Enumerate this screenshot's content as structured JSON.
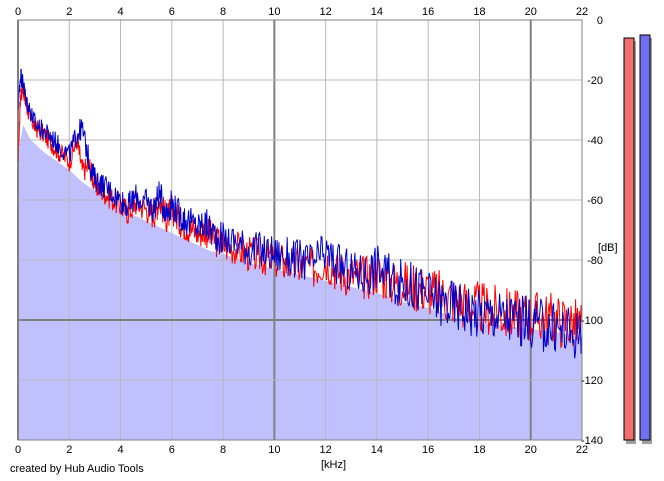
{
  "app": {
    "credit": "created by Hub Audio Tools"
  },
  "chart_data": {
    "type": "area",
    "xlabel": "[kHz]",
    "ylabel": "[dB]",
    "xlim": [
      0,
      22
    ],
    "ylim": [
      -140,
      0
    ],
    "x_ticks": [
      0,
      2,
      4,
      6,
      8,
      10,
      12,
      14,
      16,
      18,
      20,
      22
    ],
    "x_tick_labels": [
      "0",
      "2",
      "4",
      "6",
      "8",
      "10",
      "12",
      "14",
      "16",
      "18",
      "20",
      "22"
    ],
    "y_ticks": [
      0,
      -20,
      -40,
      -60,
      -80,
      -100,
      -120,
      -140
    ],
    "y_tick_labels": [
      "0",
      "-20",
      "-40",
      "-60",
      "-80",
      "-100",
      "-120",
      "-140"
    ],
    "grid": true,
    "series": [
      {
        "color": "#ff0000",
        "x": [
          0.0,
          0.1,
          0.2,
          0.3,
          0.5,
          0.7,
          1.0,
          1.3,
          1.6,
          2.0,
          2.3,
          2.5,
          2.8,
          3.0,
          3.3,
          3.6,
          4.0,
          4.3,
          4.6,
          5.0,
          5.3,
          5.5,
          5.8,
          6.0,
          6.3,
          6.6,
          7.0,
          7.3,
          7.6,
          8.0,
          8.5,
          9.0,
          9.5,
          10.0,
          10.5,
          11.0,
          11.5,
          12.0,
          12.5,
          13.0,
          13.5,
          14.0,
          14.5,
          15.0,
          15.5,
          16.0,
          16.5,
          17.0,
          17.5,
          18.0,
          18.5,
          19.0,
          19.5,
          20.0,
          20.5,
          21.0,
          21.5,
          22.0
        ],
        "values": [
          -48,
          -25,
          -22,
          -28,
          -33,
          -36,
          -38,
          -41,
          -44,
          -47,
          -40,
          -50,
          -49,
          -55,
          -57,
          -59,
          -62,
          -64,
          -61,
          -63,
          -65,
          -60,
          -66,
          -63,
          -67,
          -69,
          -71,
          -70,
          -73,
          -75,
          -76,
          -78,
          -79,
          -80,
          -81,
          -82,
          -83,
          -80,
          -84,
          -85,
          -86,
          -84,
          -87,
          -88,
          -89,
          -90,
          -92,
          -93,
          -95,
          -96,
          -97,
          -98,
          -98,
          -99,
          -99,
          -100,
          -101,
          -102
        ]
      },
      {
        "color": "#0000cc",
        "x": [
          0.0,
          0.1,
          0.2,
          0.3,
          0.5,
          0.7,
          1.0,
          1.3,
          1.6,
          2.0,
          2.3,
          2.5,
          2.8,
          3.0,
          3.3,
          3.6,
          4.0,
          4.3,
          4.6,
          5.0,
          5.3,
          5.5,
          5.8,
          6.0,
          6.3,
          6.6,
          7.0,
          7.3,
          7.6,
          8.0,
          8.5,
          9.0,
          9.5,
          10.0,
          10.5,
          11.0,
          11.5,
          12.0,
          12.5,
          13.0,
          13.5,
          14.0,
          14.5,
          15.0,
          15.5,
          16.0,
          16.5,
          17.0,
          17.5,
          18.0,
          18.5,
          19.0,
          19.5,
          20.0,
          20.5,
          21.0,
          21.5,
          22.0
        ],
        "values": [
          -30,
          -18,
          -21,
          -26,
          -31,
          -35,
          -37,
          -39,
          -42,
          -45,
          -38,
          -36,
          -48,
          -53,
          -55,
          -57,
          -60,
          -62,
          -59,
          -61,
          -63,
          -58,
          -64,
          -61,
          -65,
          -67,
          -69,
          -68,
          -71,
          -73,
          -74,
          -76,
          -77,
          -78,
          -79,
          -80,
          -81,
          -78,
          -82,
          -84,
          -85,
          -82,
          -86,
          -88,
          -89,
          -92,
          -94,
          -95,
          -96,
          -98,
          -98,
          -99,
          -100,
          -101,
          -102,
          -103,
          -104,
          -105
        ]
      }
    ],
    "fill": {
      "color": "#c0c0ff",
      "x": [
        0.0,
        0.2,
        0.5,
        1.0,
        1.5,
        2.0,
        2.5,
        3.0,
        3.5,
        4.0,
        4.5,
        5.0,
        5.5,
        6.0,
        6.5,
        7.0,
        7.5,
        8.0,
        9.0,
        10.0,
        11.0,
        12.0,
        13.0,
        14.0,
        15.0,
        16.0,
        17.0,
        18.0,
        19.0,
        20.0,
        21.0,
        22.0
      ],
      "values": [
        -45,
        -35,
        -40,
        -44,
        -47,
        -50,
        -54,
        -57,
        -60,
        -63,
        -65,
        -67,
        -69,
        -71,
        -73,
        -75,
        -77,
        -78,
        -81,
        -83,
        -85,
        -87,
        -89,
        -91,
        -94,
        -96,
        -99,
        -101,
        -102,
        -103,
        -104,
        -106
      ]
    },
    "meters": [
      {
        "color": "#f07070",
        "level_db": -6
      },
      {
        "color": "#7070f0",
        "level_db": -5
      }
    ]
  }
}
